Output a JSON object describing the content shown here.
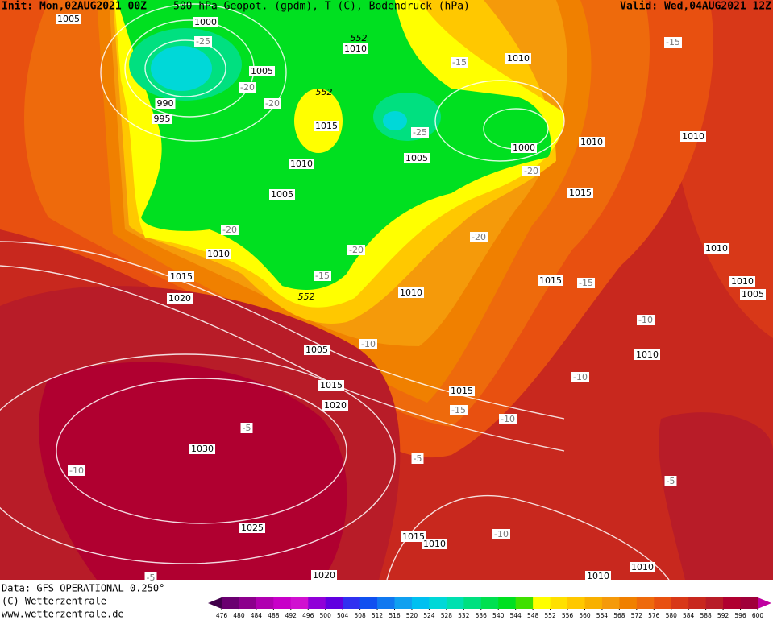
{
  "header": {
    "init": "Init: Mon,02AUG2021 00Z",
    "title": "500 hPa Geopot. (gpdm), T (C), Bodendruck (hPa)",
    "valid": "Valid: Wed,04AUG2021 12Z"
  },
  "footer": {
    "source": "Data: GFS OPERATIONAL 0.250°",
    "copyright": "(C) Wetterzentrale",
    "url": "www.wetterzentrale.de"
  },
  "map": {
    "pressure_labels": [
      1005,
      1000,
      1010,
      1010,
      1005,
      990,
      995,
      1015,
      1000,
      1010,
      1010,
      1010,
      1005,
      1005,
      1015,
      1010,
      1015,
      1020,
      1010,
      1015,
      1010,
      1010,
      1005,
      1005,
      1010,
      1015,
      1015,
      1020,
      1030,
      1025,
      1015,
      1010,
      1010,
      1020,
      1010
    ],
    "temperature_labels": [
      -25,
      -20,
      -20,
      -15,
      -25,
      -15,
      -20,
      -20,
      -20,
      -20,
      -15,
      -15,
      -10,
      -10,
      -10,
      -15,
      -10,
      -5,
      -5,
      -10,
      -5,
      -10,
      -5
    ],
    "geopotential_labels": [
      552,
      552,
      552
    ]
  },
  "colorbar": {
    "labels": [
      476,
      480,
      484,
      488,
      492,
      496,
      500,
      504,
      508,
      512,
      516,
      520,
      524,
      528,
      532,
      536,
      540,
      544,
      548,
      552,
      556,
      560,
      564,
      568,
      572,
      576,
      580,
      584,
      588,
      592,
      596,
      600
    ],
    "colors": [
      "#40004a",
      "#6a0070",
      "#8c008c",
      "#b000b0",
      "#c800c8",
      "#d010d0",
      "#9000d8",
      "#6000e0",
      "#3030f0",
      "#1050f0",
      "#1078f0",
      "#10a0f0",
      "#00c0f0",
      "#00d8d8",
      "#00e0b0",
      "#00e080",
      "#00e050",
      "#00e020",
      "#40e000",
      "#ffff00",
      "#ffe000",
      "#ffc800",
      "#f8b000",
      "#f59a0a",
      "#f08000",
      "#ee6a0c",
      "#e85010",
      "#d83818",
      "#c8281e",
      "#b81c28",
      "#b00030",
      "#a0003a",
      "#c000a0"
    ]
  }
}
